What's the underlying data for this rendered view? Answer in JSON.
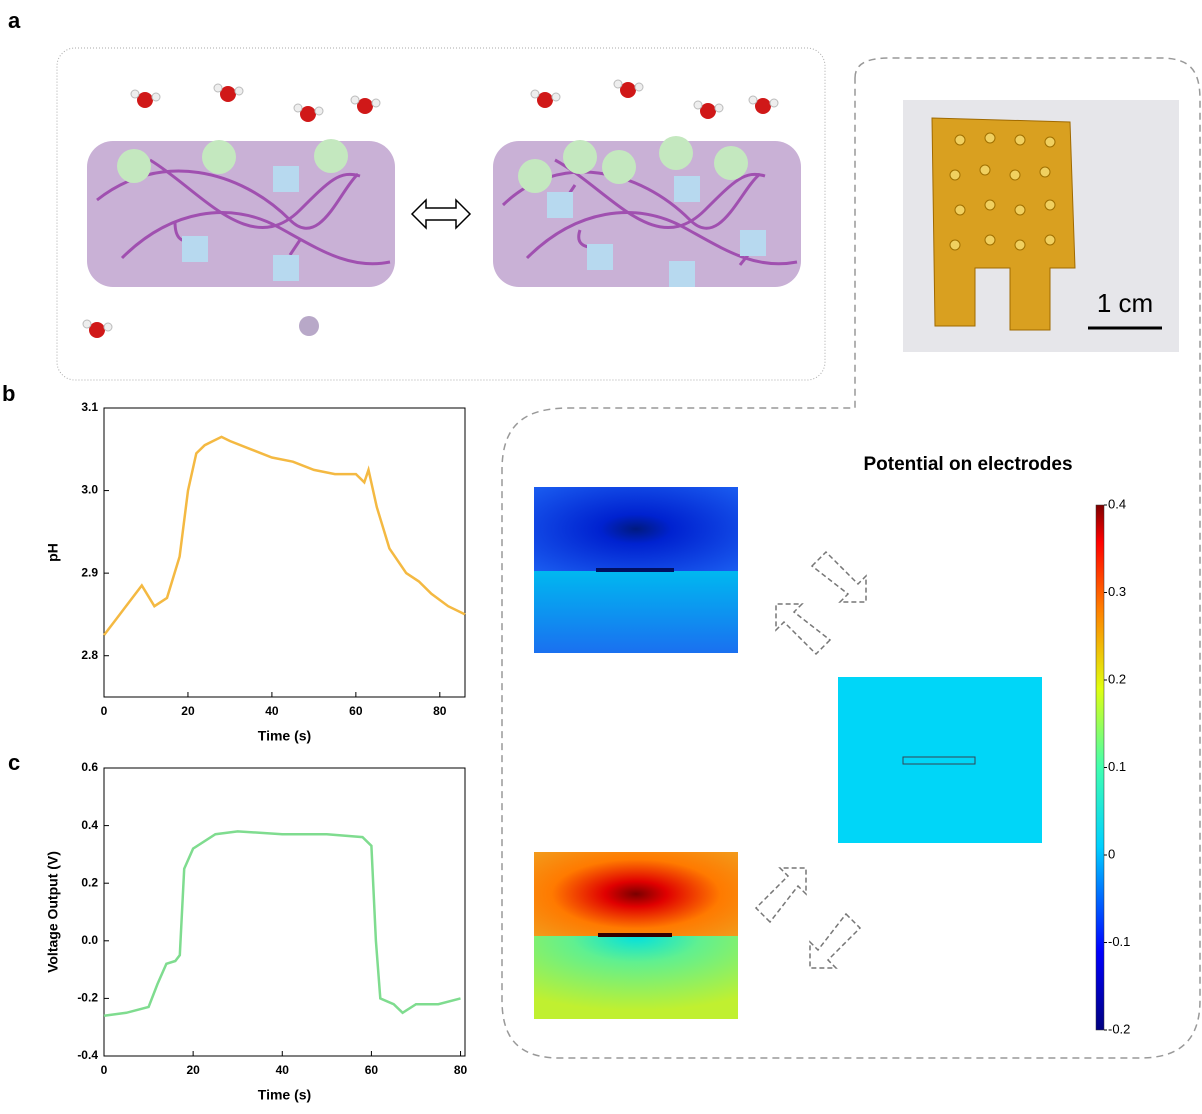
{
  "panel_labels": [
    "a",
    "b",
    "c"
  ],
  "scale_bar": "1 cm",
  "chart_data": [
    {
      "type": "line",
      "xlabel": "Time (s)",
      "ylabel": "pH",
      "color": "#f4b942",
      "x": [
        0,
        3,
        6,
        9,
        12,
        15,
        18,
        20,
        22,
        24,
        26,
        28,
        30,
        35,
        40,
        45,
        50,
        55,
        60,
        62,
        63,
        65,
        68,
        72,
        75,
        78,
        82,
        86
      ],
      "values": [
        2.825,
        2.845,
        2.865,
        2.885,
        2.86,
        2.87,
        2.92,
        3.0,
        3.045,
        3.055,
        3.06,
        3.065,
        3.06,
        3.05,
        3.04,
        3.035,
        3.025,
        3.02,
        3.02,
        3.01,
        3.025,
        2.98,
        2.93,
        2.9,
        2.89,
        2.875,
        2.86,
        2.85
      ],
      "xlim": [
        0,
        86
      ],
      "ylim": [
        2.75,
        3.1
      ],
      "xticks": [
        0,
        20,
        40,
        60,
        80
      ],
      "yticks": [
        2.8,
        2.9,
        {
          "value": 3,
          "label": "3.0"
        },
        3.1
      ]
    },
    {
      "type": "line",
      "xlabel": "Time (s)",
      "ylabel": "Voltage Output (V)",
      "color": "#7fdc8f",
      "x": [
        0,
        5,
        10,
        12,
        14,
        16,
        17,
        18,
        20,
        25,
        30,
        40,
        50,
        58,
        60,
        61,
        62,
        65,
        67,
        70,
        75,
        80
      ],
      "values": [
        -0.26,
        -0.25,
        -0.23,
        -0.15,
        -0.08,
        -0.07,
        -0.05,
        0.25,
        0.32,
        0.37,
        0.38,
        0.37,
        0.37,
        0.36,
        0.33,
        0.0,
        -0.2,
        -0.22,
        -0.25,
        -0.22,
        -0.22,
        -0.2
      ],
      "xlim": [
        0,
        81
      ],
      "ylim": [
        -0.4,
        0.6
      ],
      "xticks": [
        0,
        20,
        40,
        60,
        80
      ],
      "yticks": [
        -0.4,
        -0.2,
        {
          "value": 0,
          "label": "0.0"
        },
        0.2,
        0.4,
        0.6
      ]
    },
    {
      "type": "colorbar",
      "title": "Potential on electrodes",
      "ylim": [
        -0.2,
        0.4
      ],
      "yticks": [
        -0.2,
        -0.1,
        0,
        0.1,
        0.2,
        0.3,
        0.4
      ]
    }
  ]
}
